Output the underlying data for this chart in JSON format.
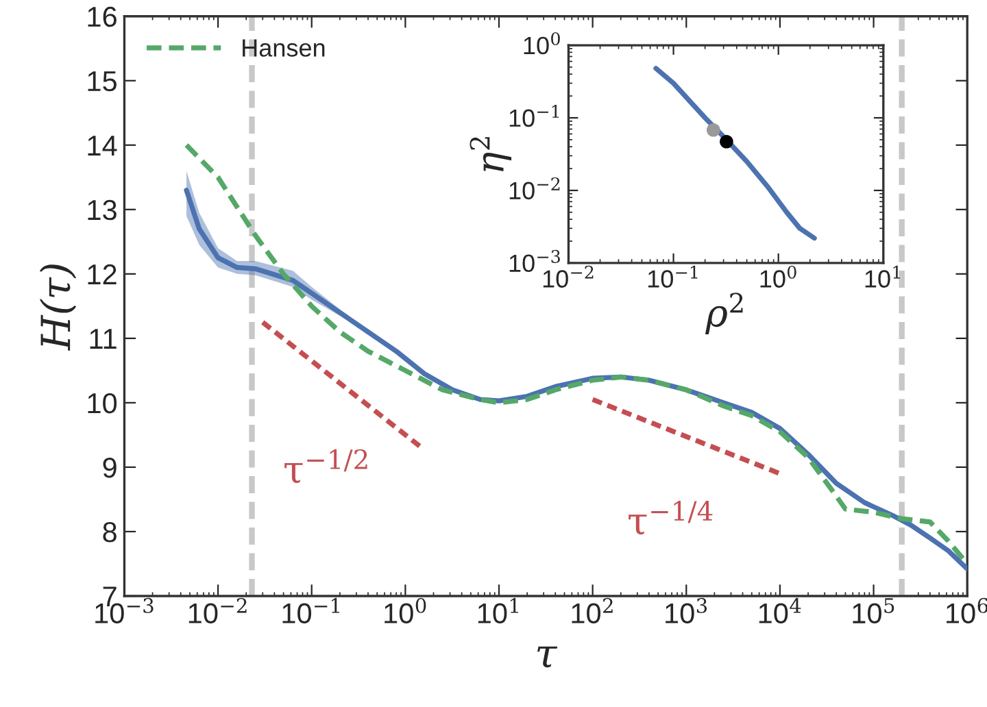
{
  "chart_data": [
    {
      "type": "line",
      "xlabel": "τ",
      "ylabel": "H(τ)",
      "log": "x",
      "grid": false,
      "legend": "top left",
      "xlim": [
        0.001,
        1000000
      ],
      "ylim": [
        7,
        16
      ],
      "xticks": [
        {
          "value": 0.001,
          "label": "10$^{−3}$"
        },
        {
          "value": 0.01,
          "label": "10$^{−2}$"
        },
        {
          "value": 0.1,
          "label": "10$^{−1}$"
        },
        {
          "value": 1,
          "label": "10$^{0}$"
        },
        {
          "value": 10,
          "label": "10$^{1}$"
        },
        {
          "value": 100,
          "label": "10$^{2}$"
        },
        {
          "value": 1000,
          "label": "10$^{3}$"
        },
        {
          "value": 10000,
          "label": "10$^{4}$"
        },
        {
          "value": 100000,
          "label": "10$^{5}$"
        },
        {
          "value": 1000000,
          "label": "10$^{6}$"
        }
      ],
      "yticks": [
        7,
        8,
        9,
        10,
        11,
        12,
        13,
        14,
        15,
        16
      ],
      "series": [
        {
          "color": "#4c72b0",
          "line_style": "solid",
          "x": [
            0.0046,
            0.0063,
            0.01,
            0.016,
            0.025,
            0.063,
            0.1,
            0.2,
            0.4,
            0.8,
            1.6,
            3.2,
            6.3,
            10,
            20,
            40,
            100,
            200,
            400,
            1000,
            2500,
            5000,
            10000,
            20000,
            40000,
            80000,
            160000,
            250000,
            400000,
            630000,
            1000000
          ],
          "values": [
            13.3,
            12.7,
            12.25,
            12.1,
            12.08,
            11.9,
            11.7,
            11.4,
            11.1,
            10.8,
            10.45,
            10.2,
            10.05,
            10.03,
            10.1,
            10.25,
            10.38,
            10.4,
            10.35,
            10.2,
            10.0,
            9.85,
            9.6,
            9.2,
            8.75,
            8.45,
            8.25,
            8.1,
            7.9,
            7.7,
            7.42
          ],
          "lower": [
            12.9,
            12.45,
            12.1,
            12.0,
            11.98,
            11.8,
            11.6,
            11.35,
            11.08,
            null,
            null,
            null,
            null,
            null,
            null,
            null,
            null,
            null,
            null,
            null,
            null,
            null,
            null,
            null,
            null,
            null,
            null,
            null,
            null,
            null,
            null
          ],
          "upper": [
            13.6,
            12.95,
            12.4,
            12.2,
            12.2,
            12.05,
            11.8,
            11.45,
            11.12,
            null,
            null,
            null,
            null,
            null,
            null,
            null,
            null,
            null,
            null,
            null,
            null,
            null,
            null,
            null,
            null,
            null,
            null,
            null,
            null,
            null,
            null
          ]
        },
        {
          "name": "Hansen",
          "color": "#55a868",
          "line_style": "dashed",
          "x": [
            0.0046,
            0.01,
            0.025,
            0.05,
            0.1,
            0.2,
            0.4,
            1,
            2.5,
            6.3,
            10,
            20,
            40,
            100,
            200,
            400,
            1000,
            2500,
            5000,
            10000,
            20000,
            40000,
            50000,
            100000,
            200000,
            400000,
            630000,
            1000000
          ],
          "values": [
            14.0,
            13.5,
            12.6,
            12.0,
            11.5,
            11.1,
            10.8,
            10.5,
            10.2,
            10.05,
            10.0,
            10.05,
            10.2,
            10.35,
            10.4,
            10.35,
            10.2,
            9.95,
            9.8,
            9.55,
            9.15,
            8.55,
            8.35,
            8.3,
            8.2,
            8.15,
            7.85,
            7.5
          ]
        },
        {
          "name": "τ$^{−1/2}$",
          "color": "#c44e52",
          "line_style": "dotted",
          "x": [
            0.03,
            1.5
          ],
          "values": [
            11.25,
            9.3
          ]
        },
        {
          "name": "τ$^{−1/4}$",
          "color": "#c44e52",
          "line_style": "dotted",
          "x": [
            100,
            10000
          ],
          "values": [
            10.05,
            8.9
          ]
        }
      ],
      "ref_lines": [
        {
          "axis": "x",
          "value": 0.023,
          "color": "#c8c8c8",
          "line_style": "dashed"
        },
        {
          "axis": "x",
          "value": 200000,
          "color": "#c8c8c8",
          "line_style": "dashed"
        }
      ]
    },
    {
      "type": "line",
      "xlabel": "ρ$^{2}$",
      "ylabel": "η$^{2}$",
      "log": "xy",
      "grid": false,
      "xlim": [
        0.01,
        10
      ],
      "ylim": [
        0.001,
        1
      ],
      "xticks": [
        {
          "value": 0.01,
          "label": "10$^{−2}$"
        },
        {
          "value": 0.1,
          "label": "10$^{−1}$"
        },
        {
          "value": 1,
          "label": "10$^{0}$"
        },
        {
          "value": 10,
          "label": "10$^{1}$"
        }
      ],
      "yticks": [
        {
          "value": 0.001,
          "label": "10$^{−3}$"
        },
        {
          "value": 0.01,
          "label": "10$^{−2}$"
        },
        {
          "value": 0.1,
          "label": "10$^{−1}$"
        },
        {
          "value": 1,
          "label": "10$^{0}$"
        }
      ],
      "series": [
        {
          "color": "#4c72b0",
          "line_style": "solid",
          "x": [
            0.068,
            0.1,
            0.2,
            0.3,
            0.5,
            0.8,
            1.2,
            1.6,
            2.2
          ],
          "values": [
            0.48,
            0.3,
            0.1,
            0.055,
            0.025,
            0.011,
            0.005,
            0.003,
            0.0022
          ]
        },
        {
          "type": "scatter",
          "marker": "circle",
          "colors": [
            "#999999",
            "#000000"
          ],
          "x": [
            0.24,
            0.32
          ],
          "values": [
            0.068,
            0.047
          ]
        }
      ]
    }
  ]
}
